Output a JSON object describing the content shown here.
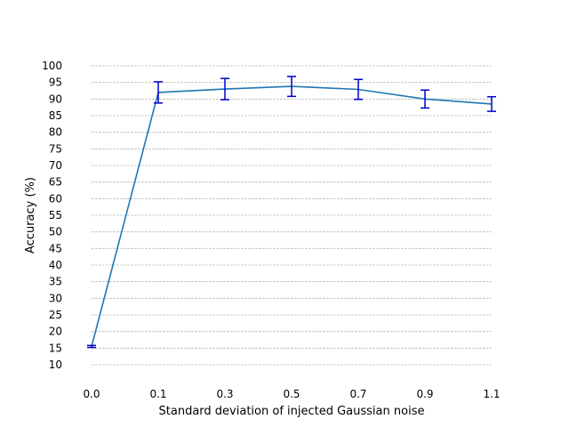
{
  "chart_data": {
    "type": "line",
    "title": "",
    "xlabel": "Standard deviation of injected Gaussian noise",
    "ylabel": "Accuracy (%)",
    "x": [
      0.0,
      0.1,
      0.3,
      0.5,
      0.7,
      0.9,
      1.1
    ],
    "x_tick_labels": [
      "0.0",
      "0.1",
      "0.3",
      "0.5",
      "0.7",
      "0.9",
      "1.1"
    ],
    "y_ticks": [
      10,
      15,
      20,
      25,
      30,
      35,
      40,
      45,
      50,
      55,
      60,
      65,
      70,
      75,
      80,
      85,
      90,
      95,
      100
    ],
    "y_tick_labels": [
      "10",
      "15",
      "20",
      "25",
      "30",
      "35",
      "40",
      "45",
      "50",
      "55",
      "60",
      "65",
      "70",
      "75",
      "80",
      "85",
      "90",
      "95",
      "100"
    ],
    "ylim": [
      10,
      100
    ],
    "grid": "horizontal-dashed",
    "series": [
      {
        "name": "Accuracy",
        "values": [
          15.5,
          92.0,
          93.0,
          93.8,
          92.9,
          90.0,
          88.5
        ],
        "errors": [
          0.3,
          3.2,
          3.2,
          3.0,
          3.0,
          2.7,
          2.2
        ],
        "line_color": "#1f77b4",
        "error_color": "#0000cc"
      }
    ]
  }
}
